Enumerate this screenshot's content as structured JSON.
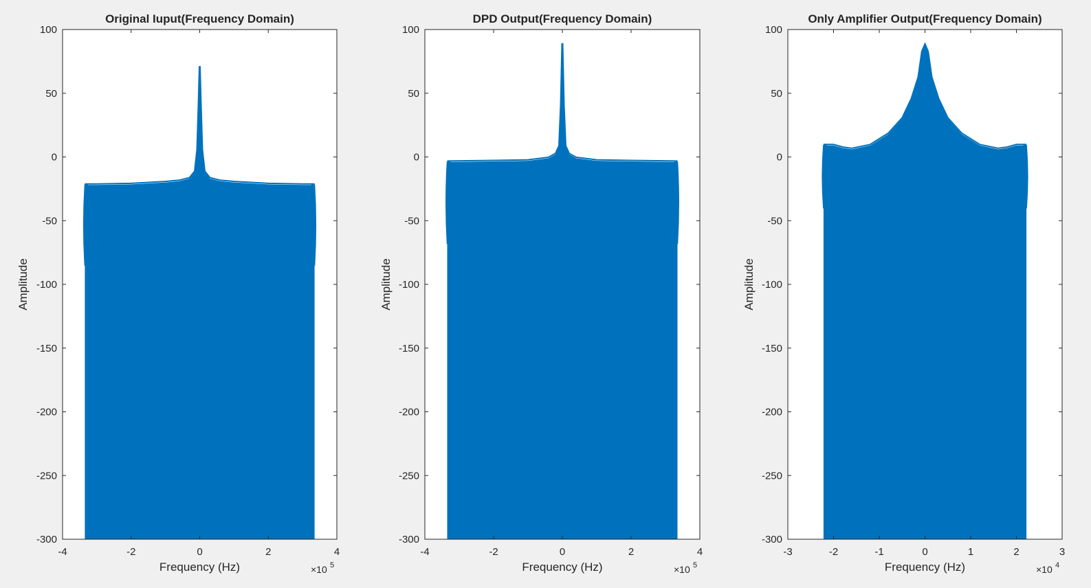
{
  "figure": {
    "background": "#f0f0f0",
    "axes_background": "#ffffff",
    "series_color": "#0072bd"
  },
  "chart_data": [
    {
      "type": "scatter",
      "title": "Original Iuput(Frequency Domain)",
      "xlabel": "Frequency (Hz)",
      "ylabel": "Amplitude",
      "xlim": [
        -4,
        4
      ],
      "ylim": [
        -300,
        100
      ],
      "xticks": [
        -4,
        -2,
        0,
        2,
        4
      ],
      "yticks": [
        100,
        50,
        0,
        -50,
        -100,
        -150,
        -200,
        -250,
        -300
      ],
      "exponent": "5",
      "grid": false,
      "legend": "none",
      "x_span": [
        -3.35,
        3.35
      ],
      "marker_band": [
        -85,
        -22
      ],
      "envelope": [
        [
          -3.35,
          -22
        ],
        [
          -3.0,
          -22
        ],
        [
          -2.0,
          -21.5
        ],
        [
          -1.0,
          -20
        ],
        [
          -0.6,
          -19
        ],
        [
          -0.3,
          -17
        ],
        [
          -0.15,
          -12
        ],
        [
          -0.08,
          5
        ],
        [
          -0.04,
          40
        ],
        [
          -0.01,
          70
        ],
        [
          0.01,
          70
        ],
        [
          0.04,
          40
        ],
        [
          0.08,
          5
        ],
        [
          0.15,
          -12
        ],
        [
          0.3,
          -17
        ],
        [
          0.6,
          -19
        ],
        [
          1.0,
          -20
        ],
        [
          2.0,
          -21.5
        ],
        [
          3.0,
          -22
        ],
        [
          3.35,
          -22
        ]
      ]
    },
    {
      "type": "scatter",
      "title": "DPD Output(Frequency Domain)",
      "xlabel": "Frequency (Hz)",
      "ylabel": "Amplitude",
      "xlim": [
        -4,
        4
      ],
      "ylim": [
        -300,
        100
      ],
      "xticks": [
        -4,
        -2,
        0,
        2,
        4
      ],
      "yticks": [
        100,
        50,
        0,
        -50,
        -100,
        -150,
        -200,
        -250,
        -300
      ],
      "exponent": "5",
      "grid": false,
      "legend": "none",
      "x_span": [
        -3.35,
        3.35
      ],
      "marker_band": [
        -68,
        -4
      ],
      "envelope": [
        [
          -3.35,
          -4
        ],
        [
          -2.0,
          -3.5
        ],
        [
          -1.0,
          -3
        ],
        [
          -0.4,
          -1
        ],
        [
          -0.2,
          2
        ],
        [
          -0.1,
          8
        ],
        [
          -0.05,
          40
        ],
        [
          -0.01,
          88
        ],
        [
          0.01,
          88
        ],
        [
          0.05,
          40
        ],
        [
          0.1,
          8
        ],
        [
          0.2,
          2
        ],
        [
          0.4,
          -1
        ],
        [
          1.0,
          -3
        ],
        [
          2.0,
          -3.5
        ],
        [
          3.35,
          -4
        ]
      ]
    },
    {
      "type": "scatter",
      "title": "Only Amplifier Output(Frequency Domain)",
      "xlabel": "Frequency (Hz)",
      "ylabel": "Amplitude",
      "xlim": [
        -3,
        3
      ],
      "ylim": [
        -300,
        100
      ],
      "xticks": [
        -3,
        -2,
        -1,
        0,
        1,
        2,
        3
      ],
      "yticks": [
        100,
        50,
        0,
        -50,
        -100,
        -150,
        -200,
        -250,
        -300
      ],
      "exponent": "4",
      "grid": false,
      "legend": "none",
      "x_span": [
        -2.22,
        2.22
      ],
      "marker_band": [
        -40,
        9
      ],
      "envelope": [
        [
          -2.22,
          9
        ],
        [
          -2.0,
          9
        ],
        [
          -1.8,
          7
        ],
        [
          -1.6,
          6
        ],
        [
          -1.2,
          9
        ],
        [
          -0.8,
          18
        ],
        [
          -0.5,
          30
        ],
        [
          -0.3,
          45
        ],
        [
          -0.15,
          62
        ],
        [
          -0.07,
          82
        ],
        [
          0.0,
          88
        ],
        [
          0.07,
          82
        ],
        [
          0.15,
          62
        ],
        [
          0.3,
          45
        ],
        [
          0.5,
          30
        ],
        [
          0.8,
          18
        ],
        [
          1.2,
          9
        ],
        [
          1.6,
          6
        ],
        [
          1.8,
          7
        ],
        [
          2.0,
          9
        ],
        [
          2.22,
          9
        ]
      ]
    }
  ]
}
